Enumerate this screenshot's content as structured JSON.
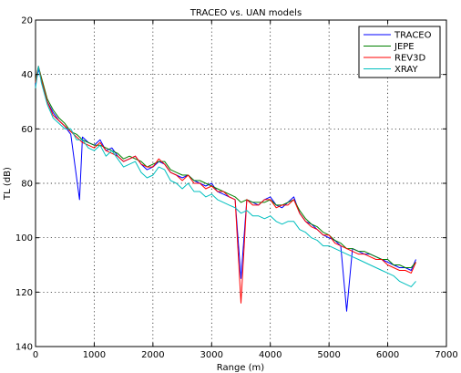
{
  "chart_data": {
    "type": "line",
    "title": "TRACEO vs. UAN models",
    "xlabel": "Range (m)",
    "ylabel": "TL (dB)",
    "xlim": [
      0,
      7000
    ],
    "ylim": [
      20,
      140
    ],
    "y_reversed": true,
    "grid": true,
    "legend_position": "top-right",
    "x_ticks": [
      0,
      1000,
      2000,
      3000,
      4000,
      5000,
      6000,
      7000
    ],
    "y_ticks": [
      20,
      40,
      60,
      80,
      100,
      120,
      140
    ],
    "x_tick_labels": [
      "0",
      "1000",
      "2000",
      "3000",
      "4000",
      "5000",
      "6000",
      "7000"
    ],
    "y_tick_labels": [
      "20",
      "40",
      "60",
      "80",
      "100",
      "120",
      "140"
    ],
    "series": [
      {
        "name": "TRACEO",
        "color": "#0000ff",
        "x": [
          0,
          50,
          100,
          200,
          300,
          400,
          500,
          600,
          750,
          800,
          900,
          1000,
          1100,
          1200,
          1300,
          1400,
          1500,
          1600,
          1700,
          1800,
          1900,
          2000,
          2100,
          2200,
          2300,
          2400,
          2500,
          2600,
          2700,
          2800,
          2900,
          3000,
          3100,
          3200,
          3300,
          3400,
          3500,
          3600,
          3700,
          3800,
          3900,
          4000,
          4100,
          4200,
          4300,
          4400,
          4500,
          4600,
          4700,
          4800,
          4900,
          5000,
          5100,
          5200,
          5300,
          5400,
          5500,
          5600,
          5700,
          5800,
          5900,
          6000,
          6100,
          6200,
          6300,
          6400,
          6480
        ],
        "y": [
          44,
          38,
          42,
          50,
          54,
          57,
          59,
          62,
          86,
          63,
          65,
          66,
          64,
          68,
          67,
          70,
          72,
          71,
          70,
          73,
          75,
          74,
          72,
          73,
          76,
          77,
          78,
          77,
          79,
          80,
          81,
          80,
          83,
          84,
          85,
          86,
          115,
          86,
          87,
          88,
          86,
          85,
          88,
          89,
          87,
          85,
          91,
          94,
          95,
          97,
          99,
          100,
          101,
          103,
          127,
          104,
          105,
          106,
          106,
          107,
          108,
          109,
          110,
          111,
          111,
          112,
          108
        ]
      },
      {
        "name": "JEPE",
        "color": "#008000",
        "x": [
          0,
          50,
          100,
          200,
          300,
          400,
          500,
          600,
          700,
          800,
          900,
          1000,
          1100,
          1200,
          1300,
          1400,
          1500,
          1600,
          1700,
          1800,
          1900,
          2000,
          2100,
          2200,
          2300,
          2400,
          2500,
          2600,
          2700,
          2800,
          2900,
          3000,
          3100,
          3200,
          3300,
          3400,
          3500,
          3600,
          3700,
          3800,
          3900,
          4000,
          4100,
          4200,
          4300,
          4400,
          4500,
          4600,
          4700,
          4800,
          4900,
          5000,
          5100,
          5200,
          5300,
          5400,
          5500,
          5600,
          5700,
          5800,
          5900,
          6000,
          6100,
          6200,
          6300,
          6400,
          6480
        ],
        "y": [
          42,
          37,
          41,
          49,
          53,
          56,
          58,
          61,
          62,
          64,
          65,
          66,
          66,
          67,
          68,
          69,
          71,
          70,
          71,
          72,
          74,
          73,
          72,
          72,
          75,
          76,
          77,
          77,
          79,
          79,
          80,
          81,
          82,
          83,
          84,
          85,
          87,
          86,
          87,
          87,
          87,
          86,
          88,
          88,
          87,
          86,
          90,
          93,
          95,
          96,
          98,
          99,
          101,
          102,
          104,
          104,
          105,
          105,
          106,
          107,
          108,
          108,
          110,
          110,
          111,
          111,
          109
        ]
      },
      {
        "name": "REV3D",
        "color": "#ff0000",
        "x": [
          0,
          50,
          100,
          200,
          300,
          400,
          500,
          600,
          700,
          800,
          900,
          1000,
          1100,
          1200,
          1300,
          1400,
          1500,
          1600,
          1700,
          1800,
          1900,
          2000,
          2100,
          2200,
          2300,
          2400,
          2500,
          2600,
          2700,
          2800,
          2900,
          3000,
          3100,
          3200,
          3300,
          3400,
          3500,
          3600,
          3700,
          3800,
          3900,
          4000,
          4100,
          4200,
          4300,
          4400,
          4500,
          4600,
          4700,
          4800,
          4900,
          5000,
          5100,
          5200,
          5300,
          5400,
          5500,
          5600,
          5700,
          5800,
          5900,
          6000,
          6100,
          6200,
          6300,
          6400,
          6480
        ],
        "y": [
          43,
          37,
          42,
          50,
          55,
          57,
          59,
          61,
          63,
          65,
          66,
          67,
          65,
          68,
          69,
          70,
          72,
          71,
          70,
          73,
          74,
          74,
          71,
          73,
          76,
          77,
          79,
          77,
          80,
          80,
          82,
          81,
          83,
          83,
          85,
          86,
          124,
          86,
          88,
          88,
          86,
          86,
          89,
          88,
          88,
          86,
          91,
          94,
          96,
          97,
          99,
          99,
          102,
          103,
          104,
          105,
          106,
          106,
          107,
          108,
          108,
          110,
          111,
          112,
          112,
          113,
          109
        ]
      },
      {
        "name": "XRAY",
        "color": "#00bfbf",
        "x": [
          0,
          50,
          100,
          200,
          300,
          400,
          500,
          600,
          700,
          800,
          900,
          1000,
          1100,
          1200,
          1300,
          1400,
          1500,
          1600,
          1700,
          1800,
          1900,
          2000,
          2100,
          2200,
          2300,
          2400,
          2500,
          2600,
          2700,
          2800,
          2900,
          3000,
          3100,
          3200,
          3300,
          3400,
          3500,
          3600,
          3700,
          3800,
          3900,
          4000,
          4100,
          4200,
          4300,
          4400,
          4500,
          4600,
          4700,
          4800,
          4900,
          5000,
          5100,
          5200,
          5300,
          5400,
          5500,
          5600,
          5700,
          5800,
          5900,
          6000,
          6100,
          6200,
          6300,
          6400,
          6480
        ],
        "y": [
          45,
          37,
          43,
          51,
          56,
          58,
          60,
          60,
          64,
          64,
          67,
          68,
          66,
          70,
          68,
          71,
          74,
          73,
          72,
          76,
          78,
          77,
          74,
          75,
          79,
          80,
          82,
          80,
          83,
          83,
          85,
          84,
          86,
          87,
          88,
          89,
          91,
          90,
          92,
          92,
          93,
          92,
          94,
          95,
          94,
          94,
          97,
          98,
          100,
          101,
          103,
          103,
          104,
          105,
          106,
          107,
          108,
          109,
          110,
          111,
          112,
          113,
          114,
          116,
          117,
          118,
          116
        ]
      }
    ]
  }
}
